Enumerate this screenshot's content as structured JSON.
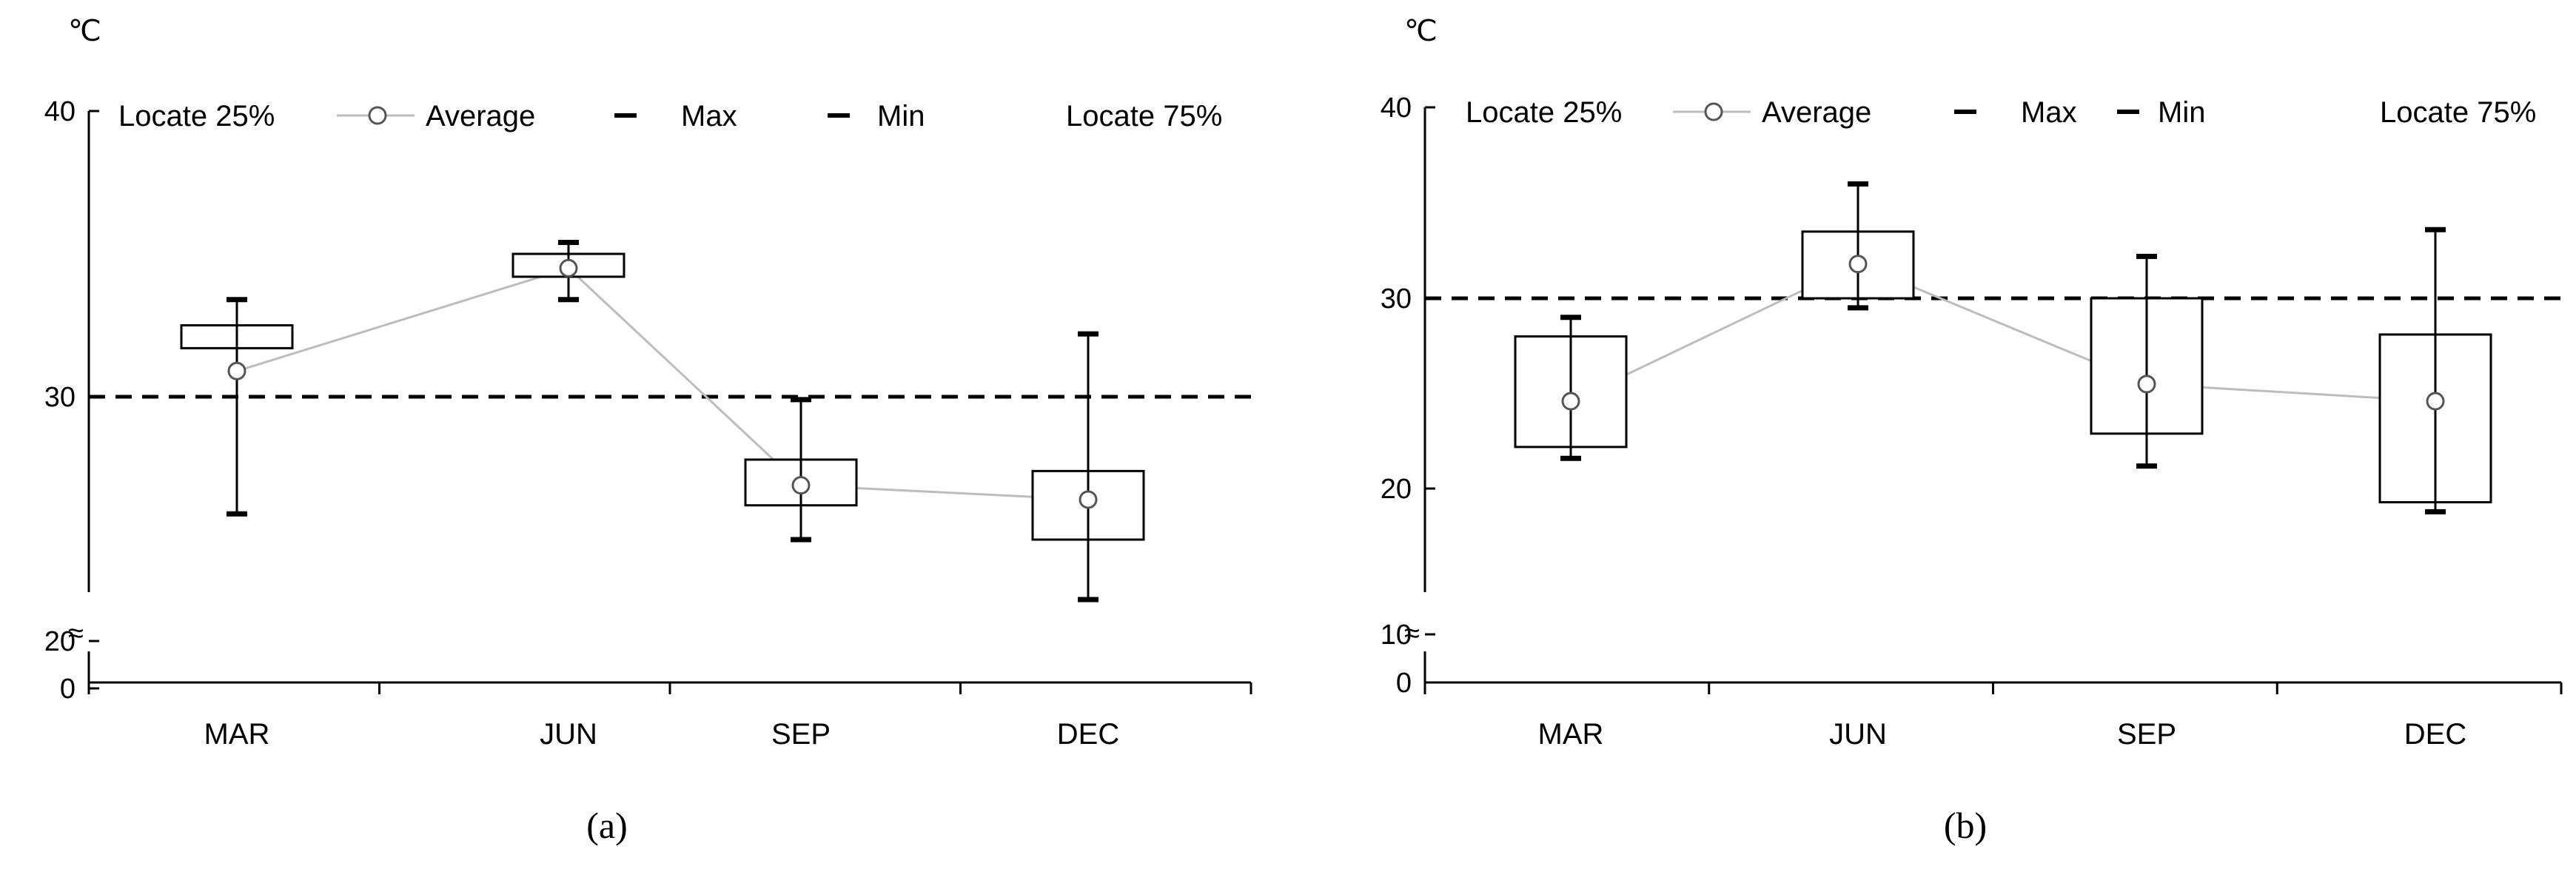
{
  "chart_data": [
    {
      "type": "box",
      "unit": "℃",
      "panel_label": "(a)",
      "categories": [
        "MAR",
        "JUN",
        "SEP",
        "DEC"
      ],
      "y_ticks": [
        "40",
        "30",
        "20",
        "0"
      ],
      "ylim": [
        20,
        40
      ],
      "axis_break": true,
      "reference_line": 30,
      "legend": [
        "Locate 25%",
        "Average",
        "Max",
        "Min",
        "Locate 75%"
      ],
      "legend_position": "top",
      "series": [
        {
          "category": "MAR",
          "min": 25.9,
          "q1": 31.7,
          "average": 30.9,
          "q3": 32.5,
          "max": 33.4
        },
        {
          "category": "JUN",
          "min": 33.4,
          "q1": 34.2,
          "average": 34.5,
          "q3": 35.0,
          "max": 35.4
        },
        {
          "category": "SEP",
          "min": 25.0,
          "q1": 26.2,
          "average": 26.9,
          "q3": 27.8,
          "max": 29.9
        },
        {
          "category": "DEC",
          "min": 22.9,
          "q1": 25.0,
          "average": 26.4,
          "q3": 27.4,
          "max": 32.2
        }
      ]
    },
    {
      "type": "box",
      "unit": "℃",
      "panel_label": "(b)",
      "categories": [
        "MAR",
        "JUN",
        "SEP",
        "DEC"
      ],
      "y_ticks": [
        "40",
        "30",
        "20",
        "10",
        "0"
      ],
      "ylim": [
        10,
        40
      ],
      "axis_break": true,
      "reference_line": 30,
      "legend": [
        "Locate 25%",
        "Average",
        "Max",
        "Min",
        "Locate 75%"
      ],
      "legend_position": "top",
      "series": [
        {
          "category": "MAR",
          "min": 21.6,
          "q1": 22.2,
          "average": 24.6,
          "q3": 28.0,
          "max": 29.0
        },
        {
          "category": "JUN",
          "min": 29.5,
          "q1": 30.0,
          "average": 31.8,
          "q3": 33.5,
          "max": 36.0
        },
        {
          "category": "SEP",
          "min": 21.2,
          "q1": 22.9,
          "average": 25.5,
          "q3": 30.0,
          "max": 32.2
        },
        {
          "category": "DEC",
          "min": 18.8,
          "q1": 19.3,
          "average": 24.6,
          "q3": 28.1,
          "max": 33.6
        }
      ]
    }
  ]
}
